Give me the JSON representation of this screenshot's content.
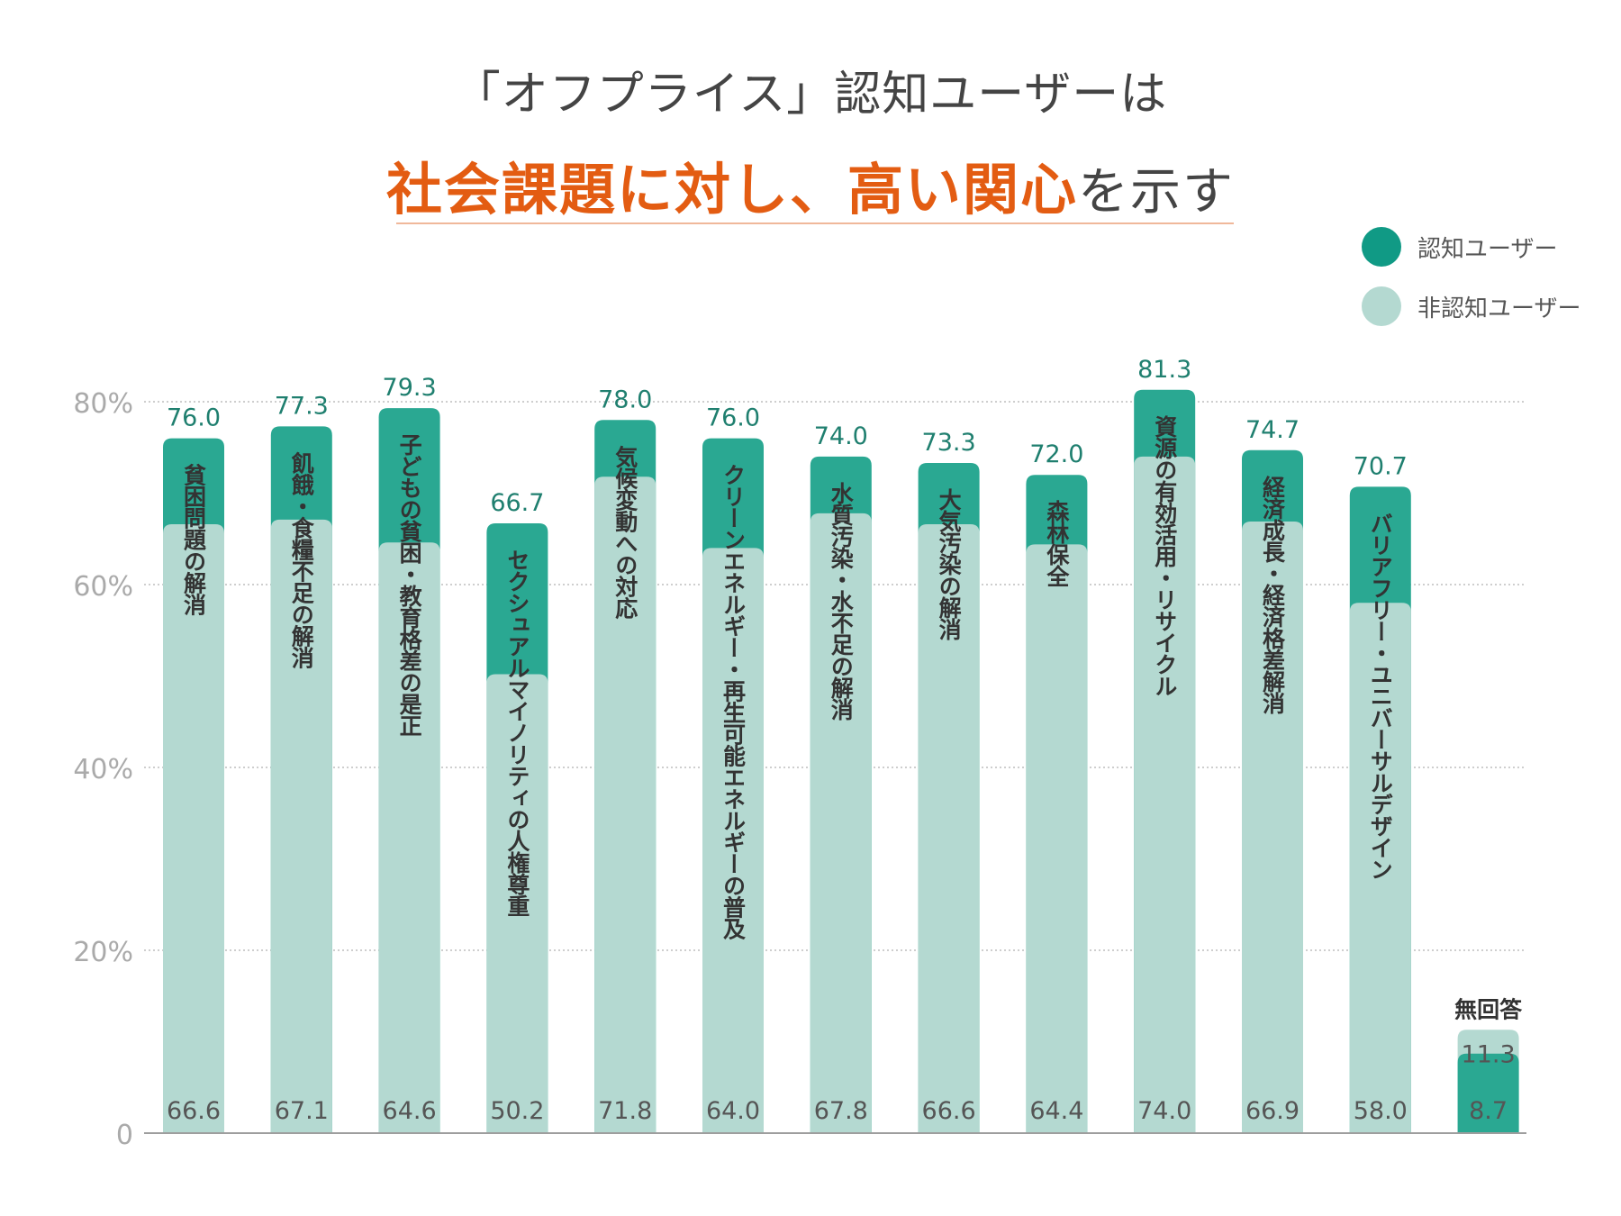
{
  "title": {
    "line1": "「オフプライス」認知ユーザーは",
    "line2_highlight": "社会課題に対し、高い関心",
    "line2_rest": "を示す"
  },
  "colors": {
    "aware": "#2aa892",
    "unaware": "#b4d9d1",
    "accent": "#e35c12"
  },
  "chart_data": {
    "type": "bar",
    "title": "「オフプライス」認知ユーザーは 社会課題に対し、高い関心を示す",
    "ylim": [
      0,
      80
    ],
    "yticks": [
      0,
      20,
      40,
      60,
      80
    ],
    "ytick_labels": [
      "0",
      "20%",
      "40%",
      "60%",
      "80%"
    ],
    "legend_position": "top-right",
    "categories": [
      "貧困問題の解消",
      "飢餓・食糧不足の解消",
      "子どもの貧困・教育格差の是正",
      "セクシュアルマイノリティの人権尊重",
      "気候変動への対応",
      "クリーンエネルギー・再生可能エネルギーの普及",
      "水質汚染・水不足の解消",
      "大気汚染の解消",
      "森林保全",
      "資源の有効活用・リサイクル",
      "経済成長・経済格差解消",
      "バリアフリー・ユニバーサルデザイン",
      "無回答"
    ],
    "series": [
      {
        "name": "認知ユーザー",
        "values": [
          76.0,
          77.3,
          79.3,
          66.7,
          78.0,
          76.0,
          74.0,
          73.3,
          72.0,
          81.3,
          74.7,
          70.7,
          8.7
        ],
        "labels": [
          "76.0",
          "77.3",
          "79.3",
          "66.7",
          "78.0",
          "76.0",
          "74.0",
          "73.3",
          "72.0",
          "81.3",
          "74.7",
          "70.7",
          "8.7"
        ]
      },
      {
        "name": "非認知ユーザー",
        "values": [
          66.6,
          67.1,
          64.6,
          50.2,
          71.8,
          64.0,
          67.8,
          66.6,
          64.4,
          74.0,
          66.9,
          58.0,
          11.3
        ],
        "labels": [
          "66.6",
          "67.1",
          "64.6",
          "50.2",
          "71.8",
          "64.0",
          "67.8",
          "66.6",
          "64.4",
          "74.0",
          "66.9",
          "58.0",
          "11.3"
        ]
      }
    ]
  }
}
